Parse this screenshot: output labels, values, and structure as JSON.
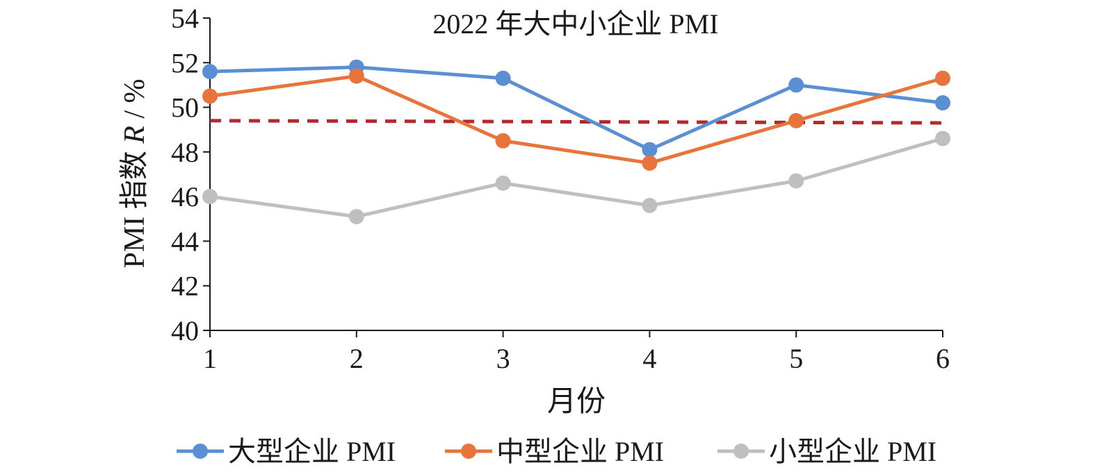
{
  "chart_data": {
    "type": "line",
    "title": "2022 年大中小企业 PMI",
    "xlabel": "月份",
    "ylabel_prefix": "PMI 指数 ",
    "ylabel_var": "R",
    "ylabel_suffix": " / %",
    "x": [
      1,
      2,
      3,
      4,
      5,
      6
    ],
    "x_tick_labels": [
      "1",
      "2",
      "3",
      "4",
      "5",
      "6"
    ],
    "ylim": [
      40,
      54
    ],
    "y_ticks": [
      40,
      42,
      44,
      46,
      48,
      50,
      52,
      54
    ],
    "y_tick_labels": [
      "40",
      "42",
      "44",
      "46",
      "48",
      "50",
      "52",
      "54"
    ],
    "grid": false,
    "legend_position": "bottom",
    "series": [
      {
        "name": "大型企业 PMI",
        "color": "#5B8FD4",
        "values": [
          51.6,
          51.8,
          51.3,
          48.1,
          51.0,
          50.2
        ]
      },
      {
        "name": "中型企业 PMI",
        "color": "#E8743B",
        "values": [
          50.5,
          51.4,
          48.5,
          47.5,
          49.4,
          51.3
        ]
      },
      {
        "name": "小型企业 PMI",
        "color": "#BFBFBF",
        "values": [
          46.0,
          45.1,
          46.6,
          45.6,
          46.7,
          48.6
        ]
      }
    ],
    "reference_line": {
      "color": "#B22A2E",
      "values": [
        49.4,
        49.3
      ]
    }
  }
}
